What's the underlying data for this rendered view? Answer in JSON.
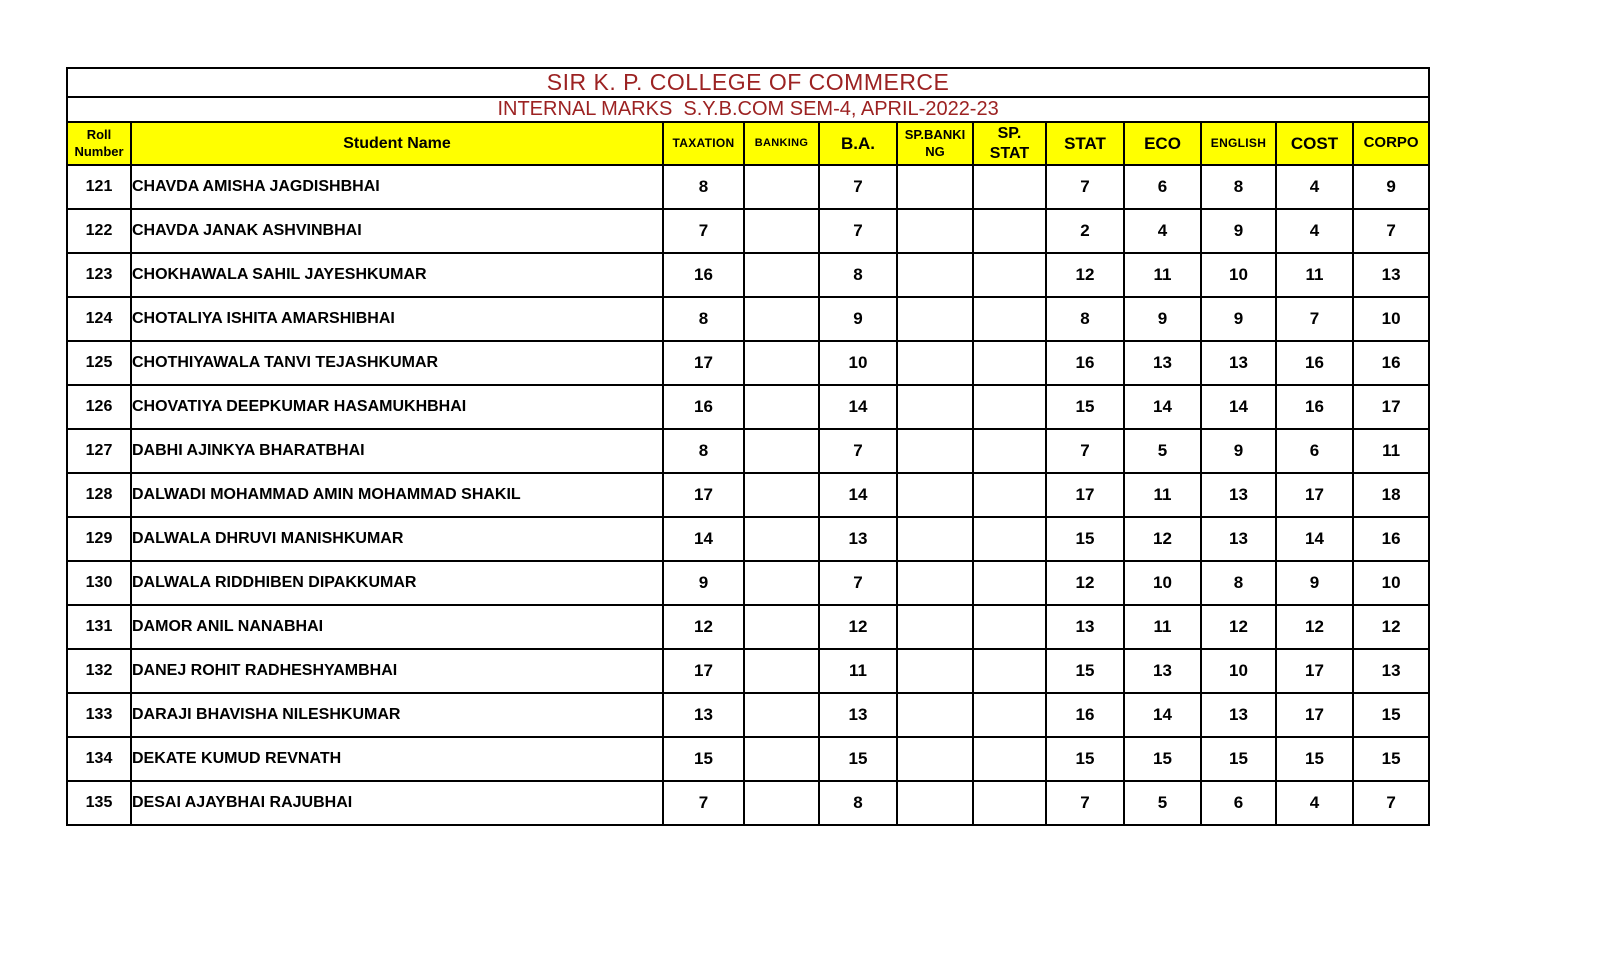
{
  "header": {
    "title": "SIR K. P. COLLEGE OF COMMERCE",
    "subtitle": "INTERNAL MARKS  S.Y.B.COM SEM-4, APRIL-2022-23"
  },
  "colors": {
    "title_text": "#9C2222",
    "header_bg": "#FFFF00",
    "border": "#000000",
    "data_text": "#000000"
  },
  "table": {
    "columns": [
      {
        "id": "roll",
        "label": "Roll\nNumber"
      },
      {
        "id": "name",
        "label": "Student Name"
      },
      {
        "id": "taxation",
        "label": "TAXATION"
      },
      {
        "id": "banking",
        "label": "BANKING"
      },
      {
        "id": "ba",
        "label": "B.A."
      },
      {
        "id": "sp_banking",
        "label": "SP.BANKI\nNG"
      },
      {
        "id": "sp_stat",
        "label": "SP.\nSTAT"
      },
      {
        "id": "stat",
        "label": "STAT"
      },
      {
        "id": "eco",
        "label": "ECO"
      },
      {
        "id": "english",
        "label": "ENGLISH"
      },
      {
        "id": "cost",
        "label": "COST"
      },
      {
        "id": "corpo",
        "label": "CORPO"
      }
    ],
    "rows": [
      {
        "roll": "121",
        "name": "CHAVDA AMISHA JAGDISHBHAI",
        "marks": [
          "8",
          "",
          "7",
          "",
          "",
          "7",
          "6",
          "8",
          "4",
          "9"
        ]
      },
      {
        "roll": "122",
        "name": "CHAVDA JANAK ASHVINBHAI",
        "marks": [
          "7",
          "",
          "7",
          "",
          "",
          "2",
          "4",
          "9",
          "4",
          "7"
        ]
      },
      {
        "roll": "123",
        "name": "CHOKHAWALA SAHIL JAYESHKUMAR",
        "marks": [
          "16",
          "",
          "8",
          "",
          "",
          "12",
          "11",
          "10",
          "11",
          "13"
        ]
      },
      {
        "roll": "124",
        "name": "CHOTALIYA ISHITA AMARSHIBHAI",
        "marks": [
          "8",
          "",
          "9",
          "",
          "",
          "8",
          "9",
          "9",
          "7",
          "10"
        ]
      },
      {
        "roll": "125",
        "name": "CHOTHIYAWALA TANVI TEJASHKUMAR",
        "marks": [
          "17",
          "",
          "10",
          "",
          "",
          "16",
          "13",
          "13",
          "16",
          "16"
        ]
      },
      {
        "roll": "126",
        "name": "CHOVATIYA DEEPKUMAR HASAMUKHBHAI",
        "marks": [
          "16",
          "",
          "14",
          "",
          "",
          "15",
          "14",
          "14",
          "16",
          "17"
        ]
      },
      {
        "roll": "127",
        "name": "DABHI AJINKYA BHARATBHAI",
        "marks": [
          "8",
          "",
          "7",
          "",
          "",
          "7",
          "5",
          "9",
          "6",
          "11"
        ]
      },
      {
        "roll": "128",
        "name": "DALWADI MOHAMMAD AMIN MOHAMMAD SHAKIL",
        "marks": [
          "17",
          "",
          "14",
          "",
          "",
          "17",
          "11",
          "13",
          "17",
          "18"
        ]
      },
      {
        "roll": "129",
        "name": "DALWALA DHRUVI MANISHKUMAR",
        "marks": [
          "14",
          "",
          "13",
          "",
          "",
          "15",
          "12",
          "13",
          "14",
          "16"
        ]
      },
      {
        "roll": "130",
        "name": "DALWALA RIDDHIBEN DIPAKKUMAR",
        "marks": [
          "9",
          "",
          "7",
          "",
          "",
          "12",
          "10",
          "8",
          "9",
          "10"
        ]
      },
      {
        "roll": "131",
        "name": "DAMOR ANIL NANABHAI",
        "marks": [
          "12",
          "",
          "12",
          "",
          "",
          "13",
          "11",
          "12",
          "12",
          "12"
        ]
      },
      {
        "roll": "132",
        "name": "DANEJ ROHIT RADHESHYAMBHAI",
        "marks": [
          "17",
          "",
          "11",
          "",
          "",
          "15",
          "13",
          "10",
          "17",
          "13"
        ]
      },
      {
        "roll": "133",
        "name": "DARAJI BHAVISHA NILESHKUMAR",
        "marks": [
          "13",
          "",
          "13",
          "",
          "",
          "16",
          "14",
          "13",
          "17",
          "15"
        ]
      },
      {
        "roll": "134",
        "name": "DEKATE KUMUD REVNATH",
        "marks": [
          "15",
          "",
          "15",
          "",
          "",
          "15",
          "15",
          "15",
          "15",
          "15"
        ]
      },
      {
        "roll": "135",
        "name": "DESAI AJAYBHAI RAJUBHAI",
        "marks": [
          "7",
          "",
          "8",
          "",
          "",
          "7",
          "5",
          "6",
          "4",
          "7"
        ]
      }
    ]
  }
}
